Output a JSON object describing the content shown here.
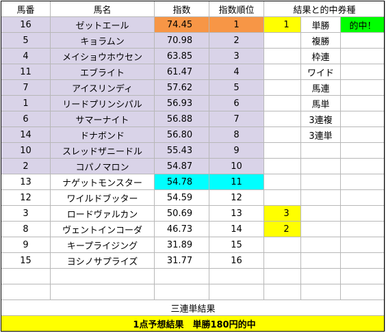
{
  "headers": {
    "num": "馬番",
    "name": "馬名",
    "index": "指数",
    "rank": "指数順位",
    "results": "結果と的中券種"
  },
  "rows": [
    {
      "num": "16",
      "name": "ゼットエール",
      "index": "74.45",
      "rank": "1",
      "res": "1",
      "bet": "単勝",
      "hit": "的中！"
    },
    {
      "num": "5",
      "name": "キョラムン",
      "index": "70.98",
      "rank": "2",
      "res": "",
      "bet": "複勝",
      "hit": ""
    },
    {
      "num": "4",
      "name": "メイショウホウセン",
      "index": "63.85",
      "rank": "3",
      "res": "",
      "bet": "枠連",
      "hit": ""
    },
    {
      "num": "11",
      "name": "エブライト",
      "index": "61.47",
      "rank": "4",
      "res": "",
      "bet": "ワイド",
      "hit": ""
    },
    {
      "num": "7",
      "name": "アイスリンディ",
      "index": "57.62",
      "rank": "5",
      "res": "",
      "bet": "馬連",
      "hit": ""
    },
    {
      "num": "1",
      "name": "リードプリンシパル",
      "index": "56.93",
      "rank": "6",
      "res": "",
      "bet": "馬単",
      "hit": ""
    },
    {
      "num": "6",
      "name": "サマーナイト",
      "index": "56.88",
      "rank": "7",
      "res": "",
      "bet": "3連複",
      "hit": ""
    },
    {
      "num": "14",
      "name": "ドナボンド",
      "index": "56.80",
      "rank": "8",
      "res": "",
      "bet": "3連単",
      "hit": ""
    },
    {
      "num": "10",
      "name": "スレッドザニードル",
      "index": "55.43",
      "rank": "9",
      "res": "",
      "bet": "",
      "hit": ""
    },
    {
      "num": "2",
      "name": "コパノマロン",
      "index": "54.87",
      "rank": "10",
      "res": "",
      "bet": "",
      "hit": ""
    },
    {
      "num": "13",
      "name": "ナゲットモンスター",
      "index": "54.78",
      "rank": "11",
      "res": "",
      "bet": "",
      "hit": ""
    },
    {
      "num": "12",
      "name": "ワイルドブッター",
      "index": "54.59",
      "rank": "12",
      "res": "",
      "bet": "",
      "hit": ""
    },
    {
      "num": "3",
      "name": "ロードヴァルカン",
      "index": "50.69",
      "rank": "13",
      "res": "3",
      "bet": "",
      "hit": ""
    },
    {
      "num": "8",
      "name": "ヴェントインコーダ",
      "index": "46.73",
      "rank": "14",
      "res": "2",
      "bet": "",
      "hit": ""
    },
    {
      "num": "9",
      "name": "キープライジング",
      "index": "31.89",
      "rank": "15",
      "res": "",
      "bet": "",
      "hit": ""
    },
    {
      "num": "15",
      "name": "ヨシノサプライズ",
      "index": "31.77",
      "rank": "16",
      "res": "",
      "bet": "",
      "hit": ""
    }
  ],
  "sanrentan_label": "三連単結果",
  "final_result": "1点予想結果　単勝180円的中",
  "colors": {
    "lavender": "#d9d3e8",
    "orange": "#f79646",
    "cyan": "#00ffff",
    "yellow": "#ffff00",
    "green": "#00ff00"
  }
}
